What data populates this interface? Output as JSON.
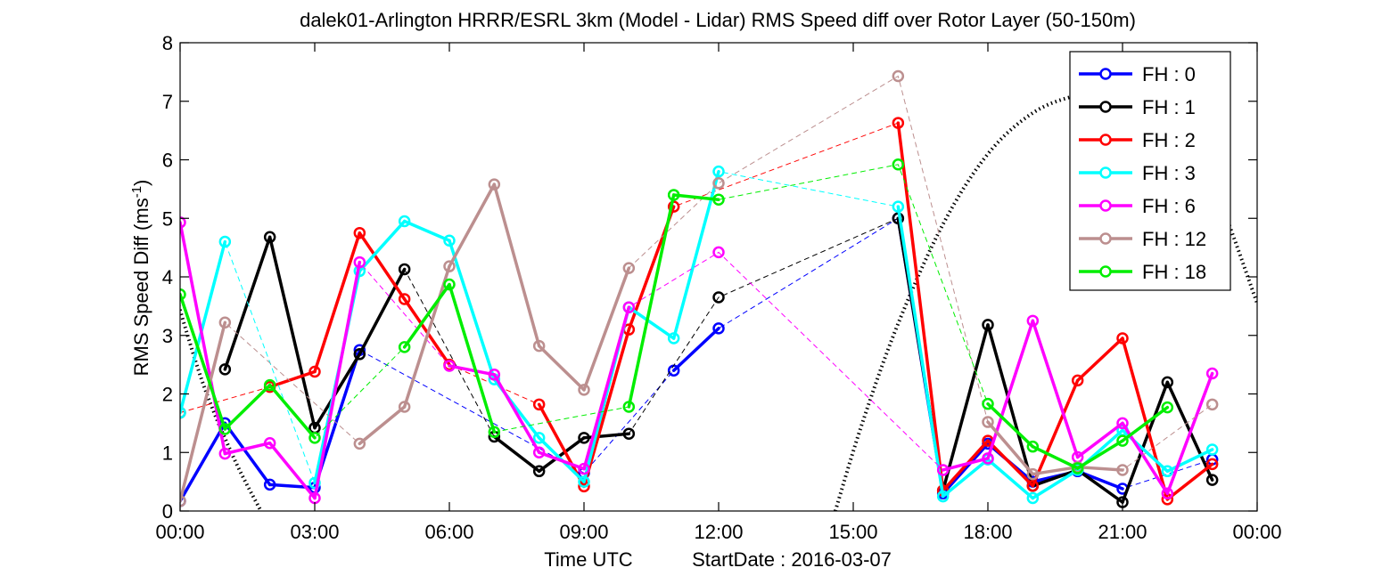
{
  "chart_data": {
    "type": "line",
    "title": "dalek01-Arlington HRRR/ESRL 3km (Model - Lidar) RMS Speed diff over Rotor Layer (50-150m)",
    "xlabel": "Time UTC",
    "start_date_label": "StartDate : 2016-03-07",
    "ylabel_text": "RMS Speed Diff (ms",
    "ylabel_sup": "-1",
    "ylabel_close": ")",
    "xlim": [
      0,
      24
    ],
    "ylim": [
      0,
      8
    ],
    "x_ticks": [
      0,
      3,
      6,
      9,
      12,
      15,
      18,
      21,
      24
    ],
    "x_tick_labels": [
      "00:00",
      "03:00",
      "06:00",
      "09:00",
      "12:00",
      "15:00",
      "18:00",
      "21:00",
      "00:00"
    ],
    "y_ticks": [
      0,
      1,
      2,
      3,
      4,
      5,
      6,
      7,
      8
    ],
    "y_tick_labels": [
      "0",
      "1",
      "2",
      "3",
      "4",
      "5",
      "6",
      "7",
      "8"
    ],
    "grid": false,
    "legend_position": "top-right",
    "series": [
      {
        "name": "FH : 0",
        "color": "#0000ff",
        "points": [
          [
            0,
            0.17
          ],
          [
            1,
            1.5
          ],
          [
            2,
            0.45
          ],
          [
            3,
            0.4
          ],
          [
            4,
            2.75
          ],
          [
            9,
            0.65
          ],
          [
            11,
            2.4
          ],
          [
            12,
            3.12
          ],
          [
            16,
            5.0
          ],
          [
            17,
            0.3
          ],
          [
            18,
            1.15
          ],
          [
            19,
            0.5
          ],
          [
            20,
            0.68
          ],
          [
            21,
            0.38
          ],
          [
            23,
            0.88
          ]
        ]
      },
      {
        "name": "FH : 1",
        "color": "#000000",
        "points": [
          [
            1,
            2.42
          ],
          [
            2,
            4.68
          ],
          [
            3,
            1.42
          ],
          [
            4,
            2.68
          ],
          [
            5,
            4.13
          ],
          [
            7,
            1.27
          ],
          [
            8,
            0.68
          ],
          [
            9,
            1.25
          ],
          [
            10,
            1.32
          ],
          [
            12,
            3.65
          ],
          [
            16,
            5.0
          ],
          [
            17,
            0.35
          ],
          [
            18,
            3.18
          ],
          [
            19,
            0.43
          ],
          [
            20,
            0.7
          ],
          [
            21,
            0.15
          ],
          [
            22,
            2.2
          ],
          [
            23,
            0.53
          ]
        ]
      },
      {
        "name": "FH : 2",
        "color": "#ff0000",
        "points": [
          [
            0,
            1.68
          ],
          [
            2,
            2.12
          ],
          [
            3,
            2.38
          ],
          [
            4,
            4.75
          ],
          [
            5,
            3.62
          ],
          [
            6,
            2.5
          ],
          [
            8,
            1.82
          ],
          [
            9,
            0.42
          ],
          [
            10,
            3.1
          ],
          [
            11,
            5.2
          ],
          [
            16,
            6.63
          ],
          [
            17,
            0.35
          ],
          [
            18,
            1.2
          ],
          [
            19,
            0.43
          ],
          [
            20,
            2.23
          ],
          [
            21,
            2.95
          ],
          [
            22,
            0.2
          ],
          [
            23,
            0.8
          ]
        ]
      },
      {
        "name": "FH : 3",
        "color": "#00ffff",
        "points": [
          [
            0,
            1.68
          ],
          [
            1,
            4.6
          ],
          [
            3,
            0.48
          ],
          [
            4,
            4.1
          ],
          [
            5,
            4.95
          ],
          [
            6,
            4.62
          ],
          [
            7,
            2.25
          ],
          [
            8,
            1.25
          ],
          [
            9,
            0.5
          ],
          [
            10,
            3.48
          ],
          [
            11,
            2.95
          ],
          [
            12,
            5.8
          ],
          [
            16,
            5.2
          ],
          [
            17,
            0.25
          ],
          [
            18,
            0.88
          ],
          [
            19,
            0.22
          ],
          [
            20,
            0.7
          ],
          [
            21,
            1.38
          ],
          [
            22,
            0.68
          ],
          [
            23,
            1.05
          ]
        ]
      },
      {
        "name": "FH : 6",
        "color": "#ff00ff",
        "points": [
          [
            0,
            4.93
          ],
          [
            1,
            0.98
          ],
          [
            2,
            1.16
          ],
          [
            3,
            0.22
          ],
          [
            4,
            4.25
          ],
          [
            6,
            2.48
          ],
          [
            7,
            2.33
          ],
          [
            8,
            1.0
          ],
          [
            9,
            0.72
          ],
          [
            10,
            3.48
          ],
          [
            12,
            4.42
          ],
          [
            17,
            0.7
          ],
          [
            18,
            0.9
          ],
          [
            19,
            3.25
          ],
          [
            20,
            0.92
          ],
          [
            21,
            1.5
          ],
          [
            22,
            0.3
          ],
          [
            23,
            2.35
          ]
        ]
      },
      {
        "name": "FH : 12",
        "color": "#bc8f8f",
        "points": [
          [
            0,
            0.17
          ],
          [
            1,
            3.22
          ],
          [
            4,
            1.15
          ],
          [
            5,
            1.78
          ],
          [
            6,
            4.18
          ],
          [
            7,
            5.58
          ],
          [
            8,
            2.82
          ],
          [
            9,
            2.07
          ],
          [
            10,
            4.15
          ],
          [
            12,
            5.6
          ],
          [
            16,
            7.43
          ],
          [
            18,
            1.52
          ],
          [
            19,
            0.63
          ],
          [
            20,
            0.75
          ],
          [
            21,
            0.7
          ],
          [
            23,
            1.82
          ]
        ]
      },
      {
        "name": "FH : 18",
        "color": "#00ee00",
        "points": [
          [
            0,
            3.7
          ],
          [
            1,
            1.4
          ],
          [
            2,
            2.15
          ],
          [
            3,
            1.25
          ],
          [
            5,
            2.8
          ],
          [
            6,
            3.87
          ],
          [
            7,
            1.35
          ],
          [
            10,
            1.78
          ],
          [
            11,
            5.4
          ],
          [
            12,
            5.32
          ],
          [
            16,
            5.92
          ],
          [
            18,
            1.83
          ],
          [
            19,
            1.1
          ],
          [
            20,
            0.73
          ],
          [
            21,
            1.2
          ],
          [
            22,
            1.77
          ]
        ]
      }
    ],
    "night_curve": {
      "left_branch": [
        [
          -0.2,
          3.95
        ],
        [
          0.5,
          2.2
        ],
        [
          1.2,
          0.9
        ],
        [
          1.8,
          0.0
        ]
      ],
      "right_branch": [
        [
          14.6,
          0.0
        ],
        [
          15.2,
          1.5
        ],
        [
          16.0,
          3.2
        ],
        [
          17.0,
          4.9
        ],
        [
          18.0,
          6.1
        ],
        [
          19.0,
          6.8
        ],
        [
          20.0,
          7.1
        ],
        [
          21.0,
          7.15
        ],
        [
          22.0,
          6.85
        ],
        [
          23.0,
          5.6
        ],
        [
          24.0,
          3.55
        ]
      ]
    }
  }
}
